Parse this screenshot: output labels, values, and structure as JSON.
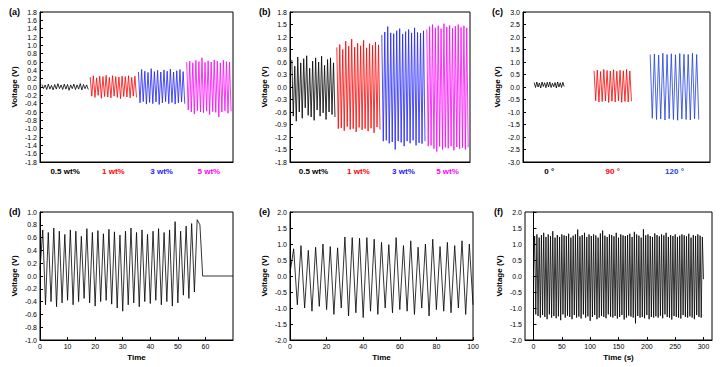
{
  "chart_data": [
    {
      "title": "(a)",
      "type": "line",
      "ylabel": "Voltage (V)",
      "tick_labels": "y",
      "ylim": [
        -1.8,
        1.8
      ],
      "yticks": [
        -1.8,
        -1.6,
        -1.4,
        -1.2,
        {
          "value": -1,
          "label": "-1.0"
        },
        -0.8,
        -0.6,
        -0.4,
        -0.2,
        {
          "value": 0,
          "label": "0.0"
        },
        0.2,
        0.4,
        0.6,
        0.8,
        {
          "value": 1,
          "label": "1.0"
        },
        1.2,
        1.4,
        1.6,
        1.8
      ],
      "series": [
        {
          "name": "0.5 wt%",
          "color": "#000000",
          "values": [
            0.06,
            -0.04,
            0.05,
            -0.06,
            0.07,
            -0.05,
            0.04,
            -0.07,
            0.06,
            -0.05,
            0.08,
            -0.04,
            0.05,
            -0.06,
            0.07,
            -0.05,
            0.06,
            -0.08,
            0.05,
            -0.04,
            0.07,
            -0.06,
            0.05,
            -0.05,
            0.08,
            -0.07,
            0.06,
            -0.04,
            0.05,
            -0.06
          ]
        },
        {
          "name": "1 wt%",
          "color": "#ff0000",
          "values": [
            0.24,
            -0.22,
            0.27,
            -0.25,
            0.22,
            -0.2,
            0.26,
            -0.27,
            0.25,
            -0.23,
            0.28,
            -0.24,
            0.23,
            -0.26,
            0.27,
            -0.22,
            0.25,
            -0.25,
            0.24,
            -0.28,
            0.26,
            -0.23,
            0.25,
            -0.24,
            0.27,
            -0.26,
            0.23,
            -0.22,
            0.26,
            -0.25
          ]
        },
        {
          "name": "3 wt%",
          "color": "#2020ff",
          "values": [
            0.36,
            -0.38,
            0.42,
            -0.35,
            0.38,
            -0.41,
            0.35,
            -0.37,
            0.44,
            -0.4,
            0.37,
            -0.36,
            0.4,
            -0.42,
            0.36,
            -0.38,
            0.41,
            -0.35,
            0.38,
            -0.4,
            0.43,
            -0.37,
            0.36,
            -0.41,
            0.39,
            -0.38,
            0.42,
            -0.36,
            0.37,
            -0.4
          ]
        },
        {
          "name": "5 wt%",
          "color": "#ff00ff",
          "values": [
            0.6,
            -0.55,
            0.62,
            -0.6,
            0.58,
            -0.65,
            0.64,
            -0.57,
            0.61,
            -0.6,
            0.7,
            -0.62,
            0.59,
            -0.58,
            0.63,
            -0.66,
            0.6,
            -0.59,
            0.65,
            -0.61,
            0.62,
            -0.72,
            0.58,
            -0.6,
            0.64,
            -0.57,
            0.61,
            -0.63,
            0.6,
            -0.58
          ]
        }
      ]
    },
    {
      "title": "(b)",
      "type": "line",
      "ylabel": "Voltage (V)",
      "tick_labels": "y",
      "ylim": [
        -1.8,
        1.8
      ],
      "yticks": [
        -1.8,
        -1.5,
        -1.2,
        -0.9,
        -0.6,
        -0.3,
        {
          "value": 0,
          "label": "0.0"
        },
        0.3,
        0.6,
        0.9,
        1.2,
        1.5,
        1.8
      ],
      "series": [
        {
          "name": "0.5 wt%",
          "color": "#000000",
          "values": [
            0.65,
            -0.7,
            0.5,
            -0.82,
            0.72,
            -0.6,
            0.58,
            -0.75,
            0.68,
            -0.5,
            0.75,
            -0.68,
            0.45,
            -0.72,
            0.62,
            -0.8,
            0.7,
            -0.55,
            0.6,
            -0.7,
            0.74,
            -0.62,
            0.52,
            -0.78,
            0.66,
            -0.6,
            0.7,
            -0.66,
            0.58,
            -0.72
          ]
        },
        {
          "name": "1 wt%",
          "color": "#ff0000",
          "values": [
            0.95,
            -1.0,
            1.02,
            -0.98,
            0.9,
            -1.05,
            1.1,
            -0.95,
            0.98,
            -1.02,
            1.15,
            -1.0,
            0.96,
            -1.08,
            1.05,
            -0.97,
            0.99,
            -1.03,
            1.12,
            -1.0,
            0.94,
            -1.06,
            1.04,
            -0.99,
            1.0,
            -1.1,
            1.08,
            -0.96,
            1.01,
            -1.02
          ]
        },
        {
          "name": "3 wt%",
          "color": "#2020ff",
          "values": [
            1.25,
            -1.3,
            1.32,
            -1.28,
            1.45,
            -1.35,
            1.3,
            -1.32,
            1.28,
            -1.5,
            1.35,
            -1.3,
            1.4,
            -1.33,
            1.27,
            -1.42,
            1.33,
            -1.3,
            1.38,
            -1.35,
            1.3,
            -1.28,
            1.42,
            -1.4,
            1.31,
            -1.34,
            1.29,
            -1.36,
            1.35,
            -1.3
          ]
        },
        {
          "name": "5 wt%",
          "color": "#ff00ff",
          "values": [
            1.38,
            -1.42,
            1.45,
            -1.4,
            1.5,
            -1.48,
            1.42,
            -1.55,
            1.47,
            -1.43,
            1.4,
            -1.5,
            1.52,
            -1.45,
            1.44,
            -1.47,
            1.48,
            -1.42,
            1.41,
            -1.52,
            1.46,
            -1.44,
            1.5,
            -1.48,
            1.43,
            -1.46,
            1.47,
            -1.5,
            1.42,
            -1.45
          ]
        }
      ]
    },
    {
      "title": "(c)",
      "type": "line",
      "ylabel": "Voltage (V)",
      "tick_labels": "y",
      "ylim": [
        -3,
        3
      ],
      "yticks": [
        {
          "value": -3,
          "label": "-3.0"
        },
        -2.5,
        {
          "value": -2,
          "label": "-2.0"
        },
        -1.5,
        {
          "value": -1,
          "label": "-1.0"
        },
        -0.5,
        {
          "value": 0,
          "label": "0.0"
        },
        0.5,
        {
          "value": 1,
          "label": "1.0"
        },
        1.5,
        {
          "value": 2,
          "label": "2.0"
        },
        2.5,
        {
          "value": 3,
          "label": "3.0"
        }
      ],
      "series": [
        {
          "name": "0 °",
          "color": "#000000",
          "values": [
            0.18,
            -0.02,
            0.2,
            0.0,
            0.16,
            -0.04,
            0.2,
            0.02,
            0.17,
            -0.03,
            0.19,
            0.0,
            0.2,
            -0.02,
            0.15,
            0.01,
            0.18,
            -0.04,
            0.2,
            0.0,
            0.17,
            -0.02,
            0.19,
            0.02
          ]
        },
        {
          "name": "90 °",
          "color": "#ff0000",
          "values": [
            0.65,
            -0.55,
            0.68,
            -0.6,
            0.62,
            -0.58,
            0.7,
            -0.56,
            0.66,
            -0.62,
            0.64,
            -0.57,
            0.69,
            -0.6,
            0.63,
            -0.55,
            0.67,
            -0.61,
            0.65,
            -0.58,
            0.7,
            -0.6,
            0.64,
            -0.57
          ]
        },
        {
          "name": "120 °",
          "color": "#1f3fdc",
          "values": [
            1.3,
            -1.25,
            1.32,
            -1.3,
            1.28,
            -1.28,
            1.35,
            -1.32,
            1.3,
            -1.27,
            1.33,
            -1.3,
            1.29,
            -1.33,
            1.34,
            -1.28,
            1.31,
            -1.3,
            1.3,
            -1.32,
            1.35,
            -1.27,
            1.3,
            -1.3
          ]
        }
      ]
    },
    {
      "title": "(d)",
      "type": "line",
      "xlabel": "Time",
      "ylabel": "Voltage (V)",
      "xlim": [
        0,
        70
      ],
      "xticks": [
        0,
        10,
        20,
        30,
        40,
        50,
        60
      ],
      "ylim": [
        -1,
        1
      ],
      "yticks": [
        {
          "value": -1,
          "label": "-1.0"
        },
        -0.8,
        -0.6,
        -0.4,
        -0.2,
        {
          "value": 0,
          "label": "0.0"
        },
        0.2,
        0.4,
        0.6,
        0.8,
        {
          "value": 1,
          "label": "1.0"
        }
      ],
      "x": [
        0,
        1,
        2,
        3,
        4,
        5,
        6,
        7,
        8,
        9,
        10,
        11,
        12,
        13,
        14,
        15,
        16,
        17,
        18,
        19,
        20,
        21,
        22,
        23,
        24,
        25,
        26,
        27,
        28,
        29,
        30,
        31,
        32,
        33,
        34,
        35,
        36,
        37,
        38,
        39,
        40,
        41,
        42,
        43,
        44,
        45,
        46,
        47,
        48,
        49,
        50,
        51,
        52,
        53,
        54,
        55,
        56,
        57,
        58,
        59,
        70
      ],
      "series": [
        {
          "color": "#000000",
          "values": [
            0.1,
            0.72,
            -0.45,
            0.68,
            -0.4,
            0.75,
            -0.48,
            0.7,
            -0.42,
            0.65,
            -0.38,
            0.72,
            -0.45,
            0.7,
            -0.4,
            0.62,
            -0.35,
            0.74,
            -0.42,
            0.68,
            -0.47,
            0.71,
            -0.4,
            0.66,
            -0.38,
            0.73,
            -0.44,
            0.69,
            -0.5,
            0.64,
            -0.55,
            0.7,
            -0.45,
            0.75,
            -0.42,
            0.68,
            -0.48,
            0.72,
            -0.4,
            0.65,
            -0.43,
            0.7,
            -0.38,
            0.74,
            -0.45,
            0.68,
            -0.4,
            0.72,
            -0.47,
            0.85,
            -0.42,
            0.7,
            -0.3,
            0.78,
            -0.35,
            0.82,
            -0.25,
            0.88,
            0.8,
            0.0,
            0.0
          ]
        }
      ]
    },
    {
      "title": "(e)",
      "type": "line",
      "xlabel": "Time",
      "ylabel": "Voltage (V)",
      "xlim": [
        0,
        100
      ],
      "xticks": [
        0,
        20,
        40,
        60,
        80,
        100
      ],
      "ylim": [
        -2,
        2
      ],
      "yticks": [
        {
          "value": -2,
          "label": "-2.0"
        },
        -1.5,
        {
          "value": -1,
          "label": "-1.0"
        },
        -0.5,
        {
          "value": 0,
          "label": "0.0"
        },
        0.5,
        {
          "value": 1,
          "label": "1.0"
        },
        1.5,
        {
          "value": 2,
          "label": "2.0"
        }
      ],
      "x": [
        0,
        2,
        4,
        6,
        8,
        10,
        12,
        14,
        16,
        18,
        20,
        22,
        24,
        26,
        28,
        30,
        32,
        34,
        36,
        38,
        40,
        42,
        44,
        46,
        48,
        50,
        52,
        54,
        56,
        58,
        60,
        62,
        64,
        66,
        68,
        70,
        72,
        74,
        76,
        78,
        80,
        82,
        84,
        86,
        88,
        90,
        92,
        94,
        96,
        98,
        100
      ],
      "series": [
        {
          "color": "#000000",
          "values": [
            0.1,
            0.85,
            -0.9,
            0.95,
            -1.0,
            0.8,
            -1.1,
            0.9,
            -0.95,
            1.0,
            -1.05,
            0.92,
            -1.2,
            0.88,
            -1.0,
            1.22,
            -1.25,
            1.2,
            -1.15,
            1.18,
            -1.3,
            1.2,
            -1.1,
            1.15,
            -1.2,
            1.05,
            -1.0,
            0.98,
            -1.15,
            1.2,
            -1.05,
            0.95,
            -1.1,
            1.1,
            -1.2,
            0.9,
            -1.0,
            1.0,
            -1.25,
            1.15,
            -1.05,
            0.92,
            -1.1,
            1.05,
            -1.15,
            0.95,
            -1.0,
            1.1,
            -1.2,
            1.0,
            -0.9
          ]
        }
      ]
    },
    {
      "title": "(f)",
      "type": "line",
      "xlabel": "Time (s)",
      "ylabel": "Voltage (V)",
      "xlim": [
        -15,
        315
      ],
      "xticks": [
        0,
        50,
        100,
        150,
        200,
        250,
        300
      ],
      "ylim": [
        -2,
        2
      ],
      "yticks": [
        {
          "value": -2,
          "label": "-2.0"
        },
        -1.5,
        {
          "value": -1,
          "label": "-1.0"
        },
        -0.5,
        {
          "value": 0,
          "label": "0.0"
        },
        0.5,
        {
          "value": 1,
          "label": "1.0"
        },
        1.5,
        {
          "value": 2,
          "label": "2.0"
        }
      ],
      "x": [
        0,
        2,
        4,
        6,
        8,
        10,
        12,
        14,
        16,
        18,
        20,
        22,
        24,
        26,
        28,
        30,
        32,
        34,
        36,
        38,
        40,
        42,
        44,
        46,
        48,
        50,
        52,
        54,
        56,
        58,
        60,
        62,
        64,
        66,
        68,
        70,
        72,
        74,
        76,
        78,
        80,
        82,
        84,
        86,
        88,
        90,
        92,
        94,
        96,
        98,
        100,
        102,
        104,
        106,
        108,
        110,
        112,
        114,
        116,
        118,
        120,
        122,
        124,
        126,
        128,
        130,
        132,
        134,
        136,
        138,
        140,
        142,
        144,
        146,
        148,
        150,
        152,
        154,
        156,
        158,
        160,
        162,
        164,
        166,
        168,
        170,
        172,
        174,
        176,
        178,
        180,
        182,
        184,
        186,
        188,
        190,
        192,
        194,
        196,
        198,
        200,
        202,
        204,
        206,
        208,
        210,
        212,
        214,
        216,
        218,
        220,
        222,
        224,
        226,
        228,
        230,
        232,
        234,
        236,
        238,
        240,
        242,
        244,
        246,
        248,
        250,
        252,
        254,
        256,
        258,
        260,
        262,
        264,
        266,
        268,
        270,
        272,
        274,
        276,
        278,
        280,
        282,
        284,
        286,
        288,
        290,
        292,
        294,
        296,
        298,
        300
      ],
      "series": [
        {
          "color": "#000000",
          "values": [
            0.2,
            1.25,
            -1.2,
            1.3,
            -1.25,
            1.2,
            -1.3,
            1.28,
            -1.22,
            1.35,
            -1.28,
            1.22,
            -1.35,
            1.3,
            -1.2,
            1.25,
            -1.3,
            1.4,
            -1.25,
            1.2,
            -1.32,
            1.28,
            -1.26,
            1.22,
            -1.38,
            1.3,
            -1.2,
            1.27,
            -1.3,
            1.25,
            -1.24,
            1.32,
            -1.28,
            1.2,
            -1.35,
            1.26,
            -1.22,
            1.3,
            -1.3,
            1.45,
            -1.27,
            1.24,
            -1.33,
            1.28,
            -1.2,
            1.35,
            -1.3,
            1.22,
            -1.26,
            1.3,
            -1.4,
            1.25,
            -1.28,
            1.3,
            -1.22,
            1.27,
            -1.35,
            1.2,
            -1.3,
            1.33,
            -1.25,
            1.42,
            -1.28,
            1.26,
            -1.32,
            1.22,
            -1.2,
            1.3,
            -1.27,
            1.28,
            -1.3,
            1.24,
            -1.25,
            1.35,
            -1.33,
            1.2,
            -1.28,
            1.3,
            -1.22,
            1.27,
            -1.36,
            1.25,
            -1.3,
            1.28,
            -1.24,
            1.32,
            -1.27,
            1.22,
            -1.3,
            1.38,
            -1.48,
            1.3,
            -1.25,
            1.26,
            -1.3,
            1.2,
            -1.28,
            1.46,
            -1.32,
            1.27,
            -1.22,
            1.3,
            -1.35,
            1.25,
            -1.28,
            1.22,
            -1.3,
            1.33,
            -1.26,
            1.28,
            -1.3,
            1.24,
            -1.24,
            1.3,
            -1.32,
            1.27,
            -1.2,
            1.35,
            -1.28,
            1.22,
            -1.3,
            1.28,
            -1.36,
            1.25,
            -1.25,
            1.3,
            -1.28,
            1.22,
            -1.3,
            1.26,
            -1.33,
            1.3,
            -1.22,
            1.27,
            -1.28,
            1.24,
            -1.3,
            1.32,
            -1.26,
            1.2,
            -1.3,
            1.28,
            -1.35,
            1.25,
            -1.22,
            1.3,
            -1.28,
            1.26,
            -1.3,
            1.22,
            -0.1
          ]
        }
      ]
    }
  ]
}
